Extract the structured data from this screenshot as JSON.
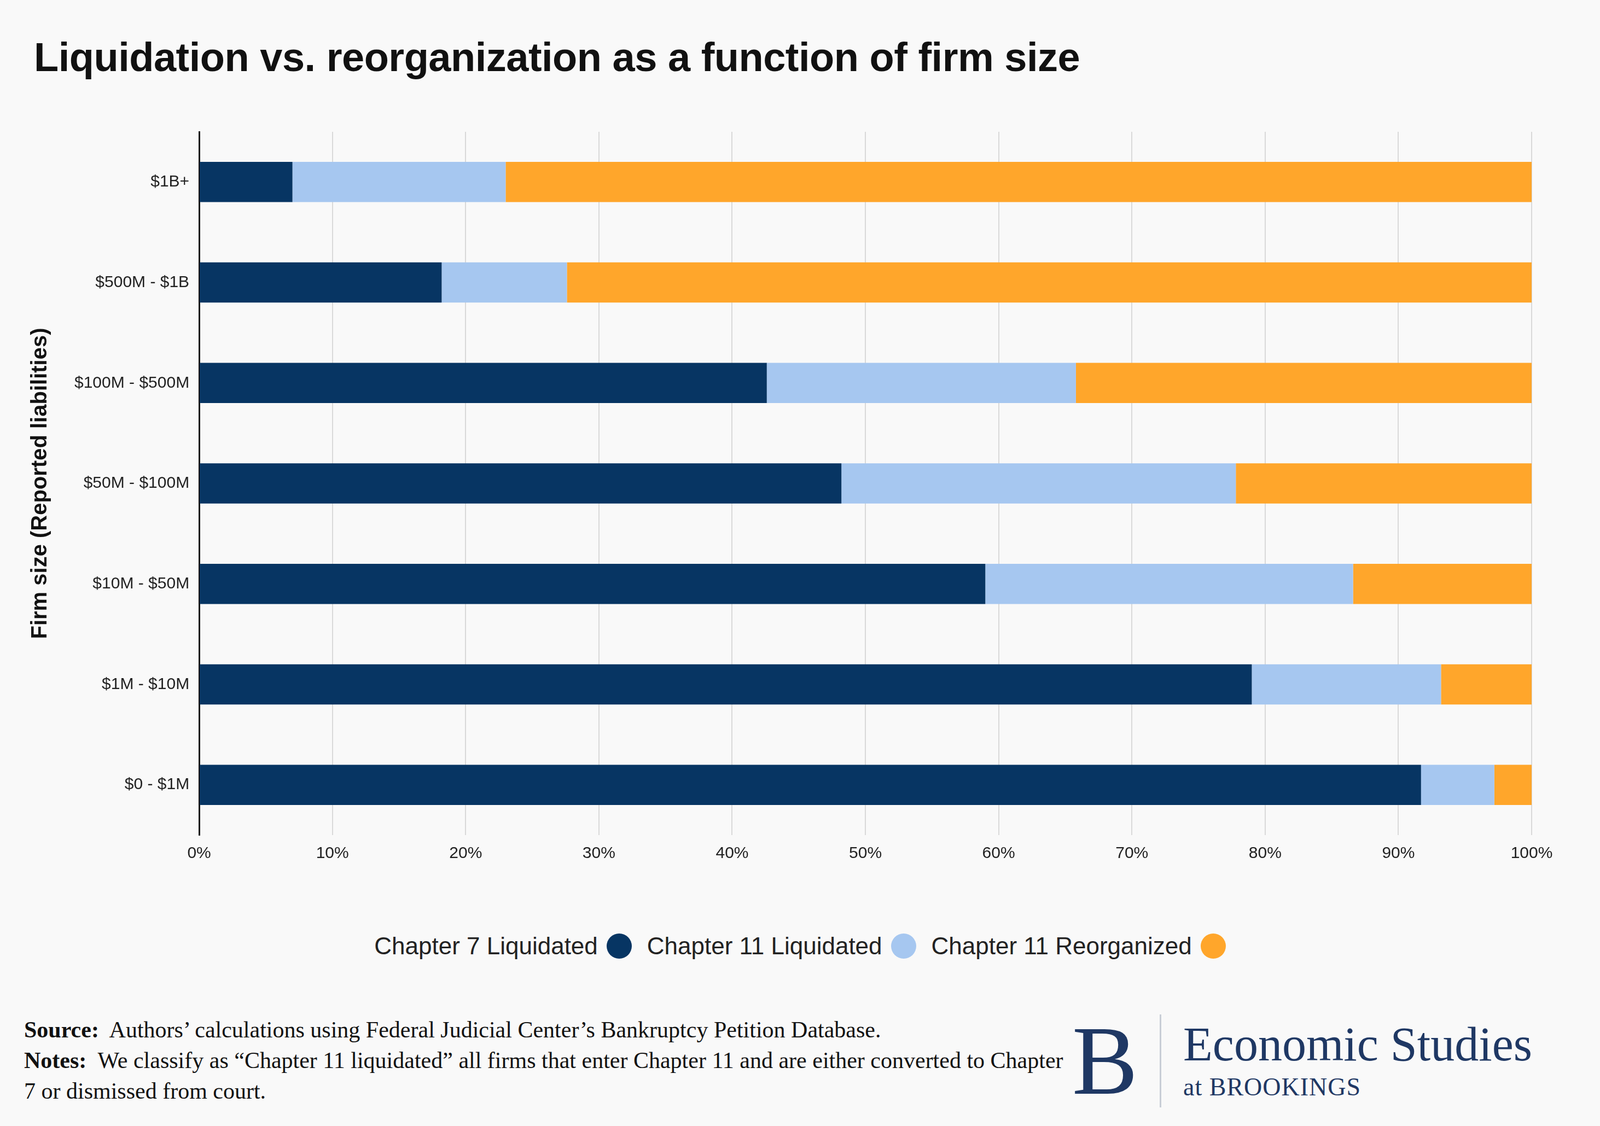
{
  "chart_data": {
    "type": "bar",
    "title": "Liquidation vs. reorganization as a function of firm size",
    "y_label": "Firm size (Reported liabilities)",
    "orientation": "horizontal",
    "stacked": true,
    "grid": true,
    "legend": "bottom",
    "data_labels": false,
    "categories": [
      "$1B+",
      "$500M - $1B",
      "$100M - $500M",
      "$50M - $100M",
      "$10M - $50M",
      "$1M - $10M",
      "$0 - $1M"
    ],
    "series": [
      {
        "name": "Chapter 7 Liquidated",
        "color": "#073563",
        "values": [
          7,
          18.2,
          42.6,
          48.2,
          59,
          79,
          91.7
        ]
      },
      {
        "name": "Chapter 11 Liquidated",
        "color": "#a6c7f0",
        "values": [
          16,
          9.4,
          23.2,
          29.6,
          27.6,
          14.2,
          5.5
        ]
      },
      {
        "name": "Chapter 11 Reorganized",
        "color": "#ffa62b",
        "values": [
          77,
          72.4,
          34.2,
          22.2,
          13.4,
          6.8,
          2.8
        ]
      }
    ],
    "xlim": [
      0,
      100
    ],
    "xticks": [
      {
        "value": 0,
        "label": "0%"
      },
      {
        "value": 10,
        "label": "10%"
      },
      {
        "value": 20,
        "label": "20%"
      },
      {
        "value": 30,
        "label": "30%"
      },
      {
        "value": 40,
        "label": "40%"
      },
      {
        "value": 50,
        "label": "50%"
      },
      {
        "value": 60,
        "label": "60%"
      },
      {
        "value": 70,
        "label": "70%"
      },
      {
        "value": 80,
        "label": "80%"
      },
      {
        "value": 90,
        "label": "90%"
      },
      {
        "value": 100,
        "label": "100%"
      }
    ],
    "source_label": "Source:",
    "source": "Authors’ calculations using Federal Judicial Center’s Bankruptcy Petition Database.",
    "notes_label": "Notes:",
    "notes": "We classify as “Chapter 11 liquidated” all firms that enter Chapter 11 and are either converted to Chapter 7 or dismissed from court.",
    "logo": {
      "mark": "B",
      "name": "Economic Studies",
      "sub": "at BROOKINGS"
    }
  }
}
